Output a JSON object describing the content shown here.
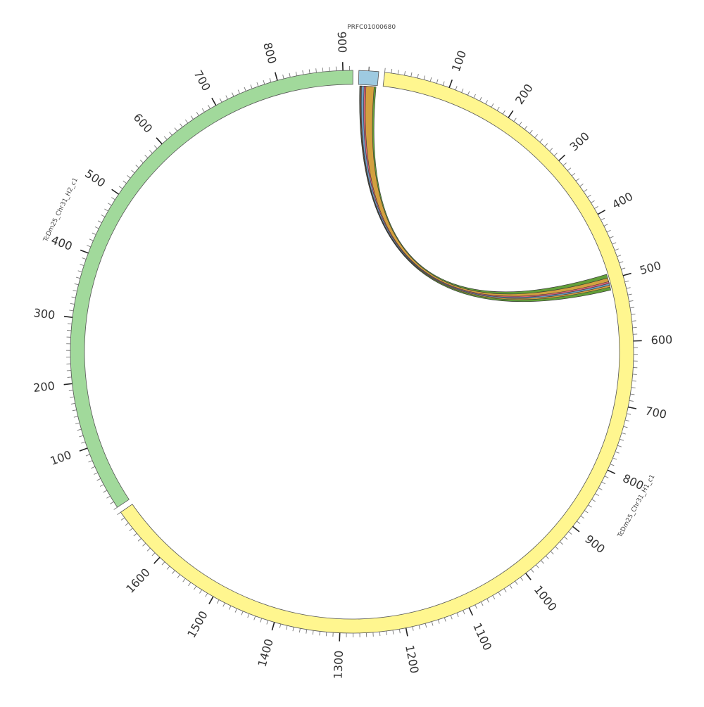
{
  "chart_data": {
    "type": "circos",
    "contigs": [
      {
        "name": "PRFC01000680",
        "length": 30,
        "color": "#9ecae1",
        "show_ticks": false
      },
      {
        "name": "TcDm25_Chr31_H1_c1",
        "length": 1690,
        "color": "#fff68f",
        "show_ticks": true
      },
      {
        "name": "TcDm25_Chr31_H2_c1",
        "length": 915,
        "color": "#a1d99b",
        "show_ticks": true
      }
    ],
    "tick_interval_major": 100,
    "tick_interval_minor": 10,
    "links": [
      {
        "from": "PRFC01000680",
        "from_range": [
          2,
          28
        ],
        "to": "TcDm25_Chr31_H1_c1",
        "to_range": [
          491,
          517
        ],
        "color": "#5a9a2e"
      },
      {
        "from": "PRFC01000680",
        "from_range": [
          3,
          25
        ],
        "to": "TcDm25_Chr31_H1_c1",
        "to_range": [
          497,
          512
        ],
        "color": "#d9a040"
      },
      {
        "from": "PRFC01000680",
        "from_range": [
          4,
          12
        ],
        "to": "TcDm25_Chr31_H1_c1",
        "to_range": [
          503,
          507
        ],
        "color": "#d8607a"
      },
      {
        "from": "PRFC01000680",
        "from_range": [
          5,
          9
        ],
        "to": "TcDm25_Chr31_H1_c1",
        "to_range": [
          506,
          509
        ],
        "color": "#6aa0c8"
      }
    ]
  }
}
